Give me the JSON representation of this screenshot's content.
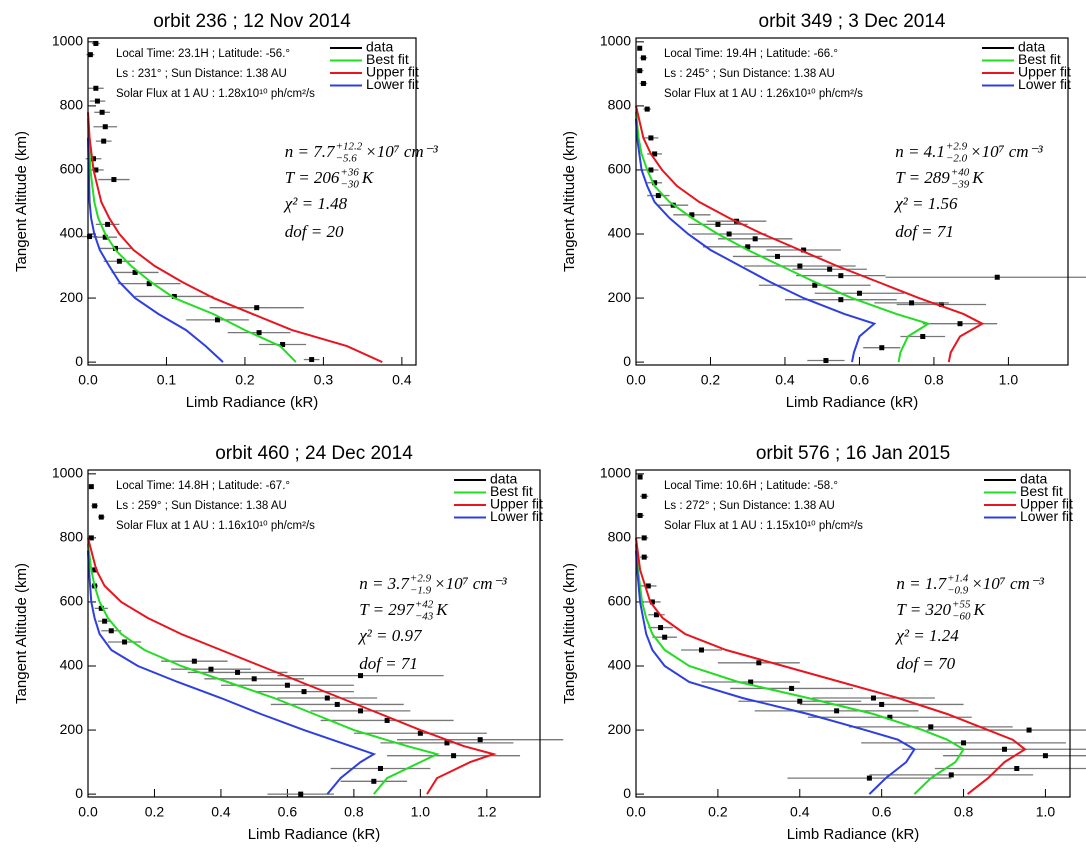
{
  "chart_data": [
    {
      "type": "line",
      "title": "orbit    236 ; 12 Nov 2014",
      "xlabel": "Limb Radiance (kR)",
      "ylabel": "Tangent Altitude (km)",
      "annotations": [
        "Local Time: 23.1H ; Latitude: -56.°",
        "Ls : 231° ; Sun Distance: 1.38 AU",
        "Solar Flux at 1 AU : 1.28x10¹⁰ ph/cm²/s"
      ],
      "formula": {
        "n": {
          "base": "n = 7.7",
          "sup": "+12.2",
          "sub": "−5.6",
          "tail": "×10⁷ cm⁻³"
        },
        "T": {
          "base": "T = 206",
          "sup": "+36",
          "sub": "−30",
          "tail": "K"
        },
        "chi2": "χ² = 1.48",
        "dof": "dof = 20"
      },
      "xlim": [
        0,
        0.418
      ],
      "ylim": [
        -9,
        1012
      ],
      "xticks": [
        {
          "value": 0,
          "label": "0.0"
        },
        0.1,
        0.2,
        0.3,
        0.4
      ],
      "yticks": [
        0,
        200,
        400,
        600,
        800,
        1000
      ],
      "series": [
        {
          "name": "data",
          "color": "#000000",
          "x": [
            0.285,
            0.248,
            0.218,
            0.165,
            0.215,
            0.11,
            0.078,
            0.06,
            0.04,
            0.035,
            0.022,
            0.002,
            0.025,
            0.033,
            0.01,
            0.007,
            0.02,
            0.022,
            0.018,
            0.012,
            0.01,
            0.003,
            0.01
          ],
          "y": [
            8,
            55,
            92,
            132,
            170,
            205,
            245,
            280,
            315,
            355,
            390,
            392,
            430,
            570,
            600,
            635,
            690,
            735,
            780,
            815,
            855,
            960,
            995
          ],
          "xerr": [
            0.01,
            0.03,
            0.04,
            0.04,
            0.06,
            0.05,
            0.04,
            0.03,
            0.02,
            0.02,
            0.015,
            0.01,
            0.015,
            0.02,
            0.01,
            0.01,
            0.01,
            0.015,
            0.01,
            0.01,
            0.01,
            0.005,
            0.005
          ]
        },
        {
          "name": "Best fit",
          "color": "#22dd22",
          "x": [
            0.265,
            0.245,
            0.2,
            0.16,
            0.11,
            0.08,
            0.055,
            0.035,
            0.022,
            0.013,
            0.008,
            0.003,
            0.001,
            0
          ],
          "y": [
            0,
            50,
            100,
            150,
            200,
            250,
            300,
            350,
            400,
            450,
            500,
            600,
            700,
            760
          ]
        },
        {
          "name": "Upper fit",
          "color": "#e8141e",
          "x": [
            0.375,
            0.33,
            0.26,
            0.21,
            0.16,
            0.12,
            0.085,
            0.058,
            0.04,
            0.027,
            0.017,
            0.007,
            0.002,
            0
          ],
          "y": [
            0,
            50,
            100,
            150,
            200,
            250,
            300,
            350,
            400,
            450,
            500,
            600,
            700,
            780
          ]
        },
        {
          "name": "Lower fit",
          "color": "#2e3fe0",
          "x": [
            0.172,
            0.15,
            0.125,
            0.09,
            0.06,
            0.04,
            0.027,
            0.015,
            0.008,
            0.004,
            0.002,
            0.001,
            0
          ],
          "y": [
            0,
            50,
            100,
            150,
            200,
            250,
            300,
            350,
            400,
            450,
            500,
            600,
            700
          ]
        }
      ]
    },
    {
      "type": "line",
      "title": "orbit    349 ; 3 Dec 2014",
      "xlabel": "Limb Radiance (kR)",
      "ylabel": "Tangent Altitude (km)",
      "annotations": [
        "Local Time: 19.4H ; Latitude: -66.°",
        "Ls : 245° ; Sun Distance: 1.38 AU",
        "Solar Flux at 1 AU : 1.26x10¹⁰ ph/cm²/s"
      ],
      "formula": {
        "n": {
          "base": "n = 4.1",
          "sup": "+2.9",
          "sub": "−2.0",
          "tail": "×10⁷ cm⁻³"
        },
        "T": {
          "base": "T = 289",
          "sup": "+40",
          "sub": "−39",
          "tail": "K"
        },
        "chi2": "χ² = 1.56",
        "dof": "dof = 71"
      },
      "xlim": [
        0,
        1.16
      ],
      "ylim": [
        -9,
        1012
      ],
      "xticks": [
        {
          "value": 0,
          "label": "0.0"
        },
        0.2,
        0.4,
        0.6,
        0.8,
        {
          "value": 1,
          "label": "1.0"
        }
      ],
      "yticks": [
        0,
        200,
        400,
        600,
        800,
        1000
      ],
      "series": [
        {
          "name": "data",
          "color": "#000000",
          "x": [
            0.51,
            0.66,
            0.77,
            0.87,
            0.82,
            0.74,
            0.97,
            0.55,
            0.6,
            0.48,
            0.55,
            0.52,
            0.44,
            0.38,
            0.45,
            0.3,
            0.32,
            0.25,
            0.22,
            0.27,
            0.15,
            0.1,
            0.06,
            0.05,
            0.04,
            0.05,
            0.04,
            0.03,
            0.02,
            0.01,
            0.02,
            0.01
          ],
          "y": [
            5,
            45,
            80,
            120,
            180,
            185,
            265,
            195,
            215,
            240,
            270,
            290,
            300,
            330,
            350,
            360,
            385,
            400,
            430,
            440,
            460,
            490,
            520,
            560,
            600,
            650,
            700,
            790,
            870,
            910,
            950,
            980
          ],
          "xerr": [
            0.05,
            0.05,
            0.06,
            0.1,
            0.12,
            0.1,
            0.3,
            0.15,
            0.12,
            0.15,
            0.12,
            0.1,
            0.15,
            0.12,
            0.1,
            0.12,
            0.1,
            0.1,
            0.08,
            0.08,
            0.05,
            0.04,
            0.03,
            0.02,
            0.02,
            0.02,
            0.02,
            0.01,
            0.01,
            0.01,
            0.01,
            0.005
          ]
        },
        {
          "name": "Best fit",
          "color": "#22dd22",
          "x": [
            0.705,
            0.71,
            0.73,
            0.785,
            0.7,
            0.58,
            0.48,
            0.39,
            0.3,
            0.22,
            0.15,
            0.09,
            0.05,
            0.03,
            0.015,
            0.007,
            0
          ],
          "y": [
            0,
            30,
            80,
            120,
            150,
            200,
            250,
            300,
            350,
            400,
            450,
            500,
            550,
            600,
            650,
            700,
            780
          ]
        },
        {
          "name": "Upper fit",
          "color": "#e8141e",
          "x": [
            0.84,
            0.845,
            0.87,
            0.93,
            0.88,
            0.76,
            0.65,
            0.54,
            0.44,
            0.34,
            0.25,
            0.17,
            0.11,
            0.07,
            0.04,
            0.02,
            0
          ],
          "y": [
            0,
            30,
            80,
            120,
            150,
            200,
            250,
            300,
            350,
            400,
            450,
            500,
            550,
            600,
            650,
            700,
            800
          ]
        },
        {
          "name": "Lower fit",
          "color": "#2e3fe0",
          "x": [
            0.58,
            0.585,
            0.6,
            0.64,
            0.56,
            0.45,
            0.36,
            0.28,
            0.2,
            0.14,
            0.09,
            0.05,
            0.03,
            0.015,
            0.003,
            0
          ],
          "y": [
            0,
            30,
            80,
            120,
            150,
            200,
            250,
            300,
            350,
            400,
            450,
            500,
            550,
            600,
            700,
            760
          ]
        }
      ]
    },
    {
      "type": "line",
      "title": "orbit  460 ; 24 Dec 2014",
      "xlabel": "Limb Radiance (kR)",
      "ylabel": "Tangent Altitude (km)",
      "annotations": [
        "Local Time: 14.8H ; Latitude: -67.°",
        "Ls : 259° ; Sun Distance: 1.38 AU",
        "Solar Flux at 1 AU : 1.16x10¹⁰ ph/cm²/s"
      ],
      "formula": {
        "n": {
          "base": "n = 3.7",
          "sup": "+2.9",
          "sub": "−1.9",
          "tail": "×10⁷ cm⁻³"
        },
        "T": {
          "base": "T = 297",
          "sup": "+42",
          "sub": "−43",
          "tail": "K"
        },
        "chi2": "χ² = 0.97",
        "dof": "dof = 71"
      },
      "xlim": [
        0,
        1.36
      ],
      "ylim": [
        -9,
        1012
      ],
      "xticks": [
        {
          "value": 0,
          "label": "0.0"
        },
        0.2,
        0.4,
        0.6,
        0.8,
        {
          "value": 1,
          "label": "1.0"
        },
        1.2
      ],
      "yticks": [
        0,
        200,
        400,
        600,
        800,
        1000
      ],
      "series": [
        {
          "name": "data",
          "color": "#000000",
          "x": [
            0.64,
            0.86,
            0.88,
            1.1,
            1.08,
            1.18,
            1.0,
            0.9,
            0.82,
            0.75,
            0.72,
            0.65,
            0.6,
            0.82,
            0.5,
            0.45,
            0.37,
            0.32,
            0.11,
            0.07,
            0.05,
            0.04,
            0.02,
            0.02,
            0.01,
            0.04,
            0.02,
            0.01
          ],
          "y": [
            0,
            40,
            80,
            120,
            160,
            170,
            190,
            230,
            260,
            280,
            300,
            320,
            340,
            370,
            360,
            380,
            390,
            415,
            475,
            510,
            540,
            580,
            650,
            700,
            800,
            865,
            900,
            960
          ],
          "xerr": [
            0.1,
            0.1,
            0.15,
            0.2,
            0.2,
            0.25,
            0.2,
            0.2,
            0.15,
            0.2,
            0.15,
            0.15,
            0.2,
            0.25,
            0.15,
            0.15,
            0.12,
            0.1,
            0.05,
            0.03,
            0.02,
            0.02,
            0.01,
            0.01,
            0.01,
            0.01,
            0.01,
            0.005
          ]
        },
        {
          "name": "Best fit",
          "color": "#22dd22",
          "x": [
            0.86,
            0.9,
            1.0,
            1.05,
            0.96,
            0.8,
            0.68,
            0.56,
            0.42,
            0.28,
            0.17,
            0.1,
            0.06,
            0.035,
            0.02,
            0.01,
            0
          ],
          "y": [
            0,
            50,
            100,
            125,
            150,
            200,
            250,
            300,
            350,
            400,
            450,
            500,
            550,
            600,
            650,
            700,
            780
          ]
        },
        {
          "name": "Upper fit",
          "color": "#e8141e",
          "x": [
            1.02,
            1.05,
            1.15,
            1.22,
            1.13,
            1.0,
            0.88,
            0.76,
            0.64,
            0.52,
            0.4,
            0.28,
            0.18,
            0.1,
            0.05,
            0.025,
            0
          ],
          "y": [
            0,
            50,
            100,
            125,
            150,
            200,
            250,
            300,
            350,
            400,
            450,
            500,
            550,
            600,
            650,
            700,
            800
          ]
        },
        {
          "name": "Lower fit",
          "color": "#2e3fe0",
          "x": [
            0.72,
            0.76,
            0.82,
            0.86,
            0.79,
            0.65,
            0.52,
            0.4,
            0.27,
            0.15,
            0.07,
            0.035,
            0.02,
            0.01,
            0.003,
            0
          ],
          "y": [
            0,
            50,
            100,
            125,
            150,
            200,
            250,
            300,
            350,
            400,
            450,
            500,
            550,
            600,
            700,
            760
          ]
        }
      ]
    },
    {
      "type": "line",
      "title": "orbit    576 ; 16 Jan 2015",
      "xlabel": "Limb Radiance (kR)",
      "ylabel": "Tangent Altitude (km)",
      "annotations": [
        "Local Time: 10.6H ; Latitude: -58.°",
        "Ls : 272° ; Sun Distance: 1.38 AU",
        "Solar Flux at 1 AU : 1.15x10¹⁰ ph/cm²/s"
      ],
      "formula": {
        "n": {
          "base": "n = 1.7",
          "sup": "+1.4",
          "sub": "−0.9",
          "tail": "×10⁷ cm⁻³"
        },
        "T": {
          "base": "T = 320",
          "sup": "+55",
          "sub": "−60",
          "tail": "K"
        },
        "chi2": "χ² = 1.24",
        "dof": "dof = 70"
      },
      "xlim": [
        0,
        1.06
      ],
      "ylim": [
        -9,
        1012
      ],
      "xticks": [
        {
          "value": 0,
          "label": "0.0"
        },
        0.2,
        0.4,
        0.6,
        0.8,
        {
          "value": 1,
          "label": "1.0"
        }
      ],
      "yticks": [
        0,
        200,
        400,
        600,
        800,
        1000
      ],
      "series": [
        {
          "name": "data",
          "color": "#000000",
          "x": [
            0.57,
            0.77,
            0.93,
            1.0,
            0.9,
            0.8,
            0.96,
            0.72,
            0.62,
            0.6,
            0.58,
            0.49,
            0.4,
            0.38,
            0.28,
            0.3,
            0.16,
            0.07,
            0.06,
            0.05,
            0.04,
            0.03,
            0.02,
            0.02,
            0.01,
            0.02,
            0.01
          ],
          "y": [
            50,
            60,
            80,
            120,
            140,
            160,
            200,
            210,
            240,
            280,
            300,
            260,
            290,
            330,
            350,
            410,
            450,
            490,
            520,
            560,
            600,
            650,
            740,
            800,
            870,
            930,
            990
          ],
          "xerr": [
            0.2,
            0.2,
            0.2,
            0.25,
            0.25,
            0.25,
            0.25,
            0.2,
            0.2,
            0.2,
            0.15,
            0.2,
            0.15,
            0.15,
            0.12,
            0.1,
            0.05,
            0.03,
            0.03,
            0.02,
            0.02,
            0.02,
            0.01,
            0.01,
            0.01,
            0.01,
            0.005
          ]
        },
        {
          "name": "Best fit",
          "color": "#22dd22",
          "x": [
            0.68,
            0.72,
            0.78,
            0.8,
            0.76,
            0.7,
            0.58,
            0.42,
            0.25,
            0.13,
            0.07,
            0.04,
            0.025,
            0.015,
            0.005,
            0
          ],
          "y": [
            0,
            50,
            100,
            140,
            170,
            200,
            250,
            300,
            350,
            400,
            450,
            500,
            550,
            600,
            700,
            780
          ]
        },
        {
          "name": "Upper fit",
          "color": "#e8141e",
          "x": [
            0.81,
            0.86,
            0.9,
            0.95,
            0.92,
            0.86,
            0.76,
            0.64,
            0.5,
            0.36,
            0.22,
            0.12,
            0.065,
            0.035,
            0.01,
            0
          ],
          "y": [
            0,
            50,
            100,
            140,
            170,
            200,
            250,
            300,
            350,
            400,
            450,
            500,
            550,
            600,
            700,
            800
          ]
        },
        {
          "name": "Lower fit",
          "color": "#2e3fe0",
          "x": [
            0.57,
            0.61,
            0.66,
            0.68,
            0.64,
            0.56,
            0.42,
            0.26,
            0.13,
            0.07,
            0.04,
            0.025,
            0.01,
            0.003,
            0
          ],
          "y": [
            0,
            50,
            100,
            140,
            170,
            200,
            250,
            300,
            350,
            400,
            450,
            500,
            600,
            700,
            760
          ]
        }
      ]
    }
  ]
}
